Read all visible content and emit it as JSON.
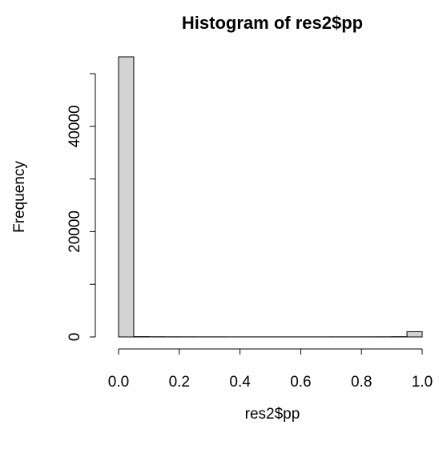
{
  "chart_data": {
    "type": "histogram",
    "title": "Histogram of res2$pp",
    "x_label": "res2$pp",
    "y_label": "Frequency",
    "bins": [
      0,
      0.05,
      0.1,
      0.15,
      0.2,
      0.25,
      0.3,
      0.35,
      0.4,
      0.45,
      0.5,
      0.55,
      0.6,
      0.65,
      0.7,
      0.75,
      0.8,
      0.85,
      0.9,
      0.95,
      1
    ],
    "values": [
      53200,
      60,
      40,
      30,
      25,
      20,
      20,
      15,
      15,
      15,
      15,
      15,
      15,
      15,
      20,
      20,
      25,
      30,
      50,
      1000
    ],
    "color": "#d3d3d3",
    "xlim": [
      0,
      1
    ],
    "ylim": [
      0,
      53200
    ],
    "xticks": [
      {
        "value": 0,
        "label": "0.0"
      },
      0.2,
      0.4,
      0.6,
      0.8,
      {
        "value": 1,
        "label": "1.0"
      }
    ],
    "yticks": [
      0,
      20000,
      40000
    ],
    "yticks_unlabeled": [
      10000,
      30000,
      50000
    ],
    "grid": false
  }
}
